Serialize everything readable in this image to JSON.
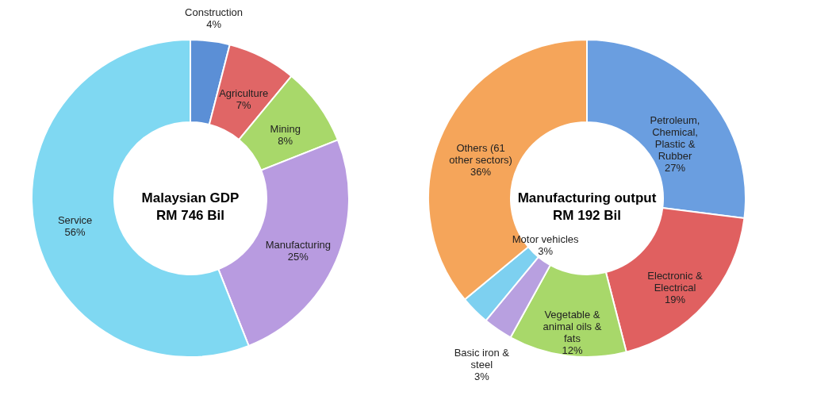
{
  "chart_data": [
    {
      "type": "donut",
      "title": "Malaysian GDP",
      "subtitle": "RM 746 Bil",
      "categories": [
        "Construction",
        "Agriculture",
        "Mining",
        "Manufacturing",
        "Service"
      ],
      "values": [
        4,
        7,
        8,
        25,
        56
      ],
      "value_labels": [
        "4%",
        "7%",
        "8%",
        "25%",
        "56%"
      ],
      "colors": [
        "#5b8fd6",
        "#e06666",
        "#a8d86a",
        "#b89be0",
        "#7fd8f2"
      ]
    },
    {
      "type": "donut",
      "title": "Manufacturing output",
      "subtitle": "RM 192 Bil",
      "categories": [
        "Petroleum, Chemical, Plastic & Rubber",
        "Electronic & Electrical",
        "Vegetable & animal oils & fats",
        "Basic iron & steel",
        "Motor vehicles",
        "Others (61 other sectors)"
      ],
      "values": [
        27,
        19,
        12,
        3,
        3,
        36
      ],
      "value_labels": [
        "27%",
        "19%",
        "12%",
        "3%",
        "3%",
        "36%"
      ],
      "colors": [
        "#6a9ee0",
        "#e06060",
        "#a8d86a",
        "#b8a0e0",
        "#7dd0f0",
        "#f5a55a"
      ]
    }
  ]
}
